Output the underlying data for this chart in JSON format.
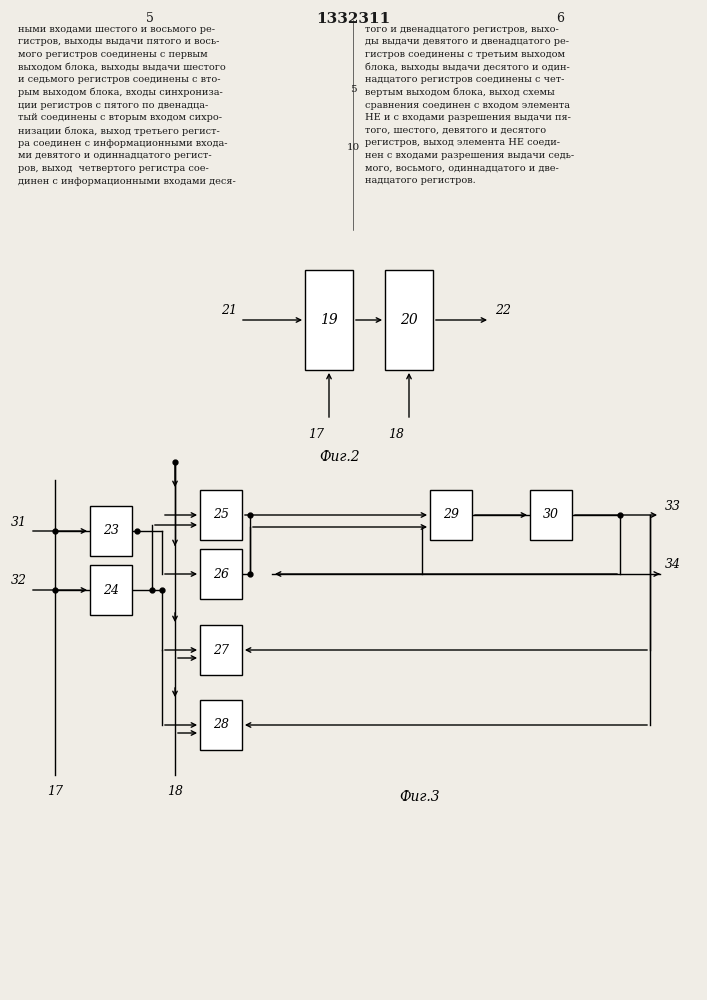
{
  "title": "1332311",
  "page_left": "5",
  "page_right": "6",
  "bg": "#f0ede6",
  "text_color": "#1a1a1a",
  "line_numbers": {
    "n5": "5",
    "n10": "10"
  },
  "left_text": "ными входами шестого и восьмого ре-\nгистров, выходы выдачи пятого и вось-\nмого регистров соединены с первым\nвыходом блока, выходы выдачи шестого\nи седьмого регистров соединены с вто-\nрым выходом блока, входы синхрониза-\nции регистров с пятого по двенадца-\nтый соединены с вторым входом сихро-\nнизации блока, выход третьего регист-\nра соединен с информационными входа-\nми девятого и одиннадцатого регист-\nров, выход  четвертого регистра сое-\nдинен с информационными входами деся-",
  "right_text": "того и двенадцатого регистров, выхо-\nды выдачи девятого и двенадцатого ре-\nгистров соединены с третьим выходом\nблока, выходы выдачи десятого и один-\nнадцатого регистров соединены с чет-\nвертым выходом блока, выход схемы\nсравнения соединен с входом элемента\nНЕ и с входами разрешения выдачи пя-\nтого, шестого, девятого и десятого\nрегистров, выход элемента НЕ соеди-\nнен с входами разрешения выдачи седь-\nмого, восьмого, одиннадцатого и две-\nнадцатого регистров.",
  "fig2_caption": "Фиг.2",
  "fig3_caption": "Фиг.3",
  "lw": 1.0
}
